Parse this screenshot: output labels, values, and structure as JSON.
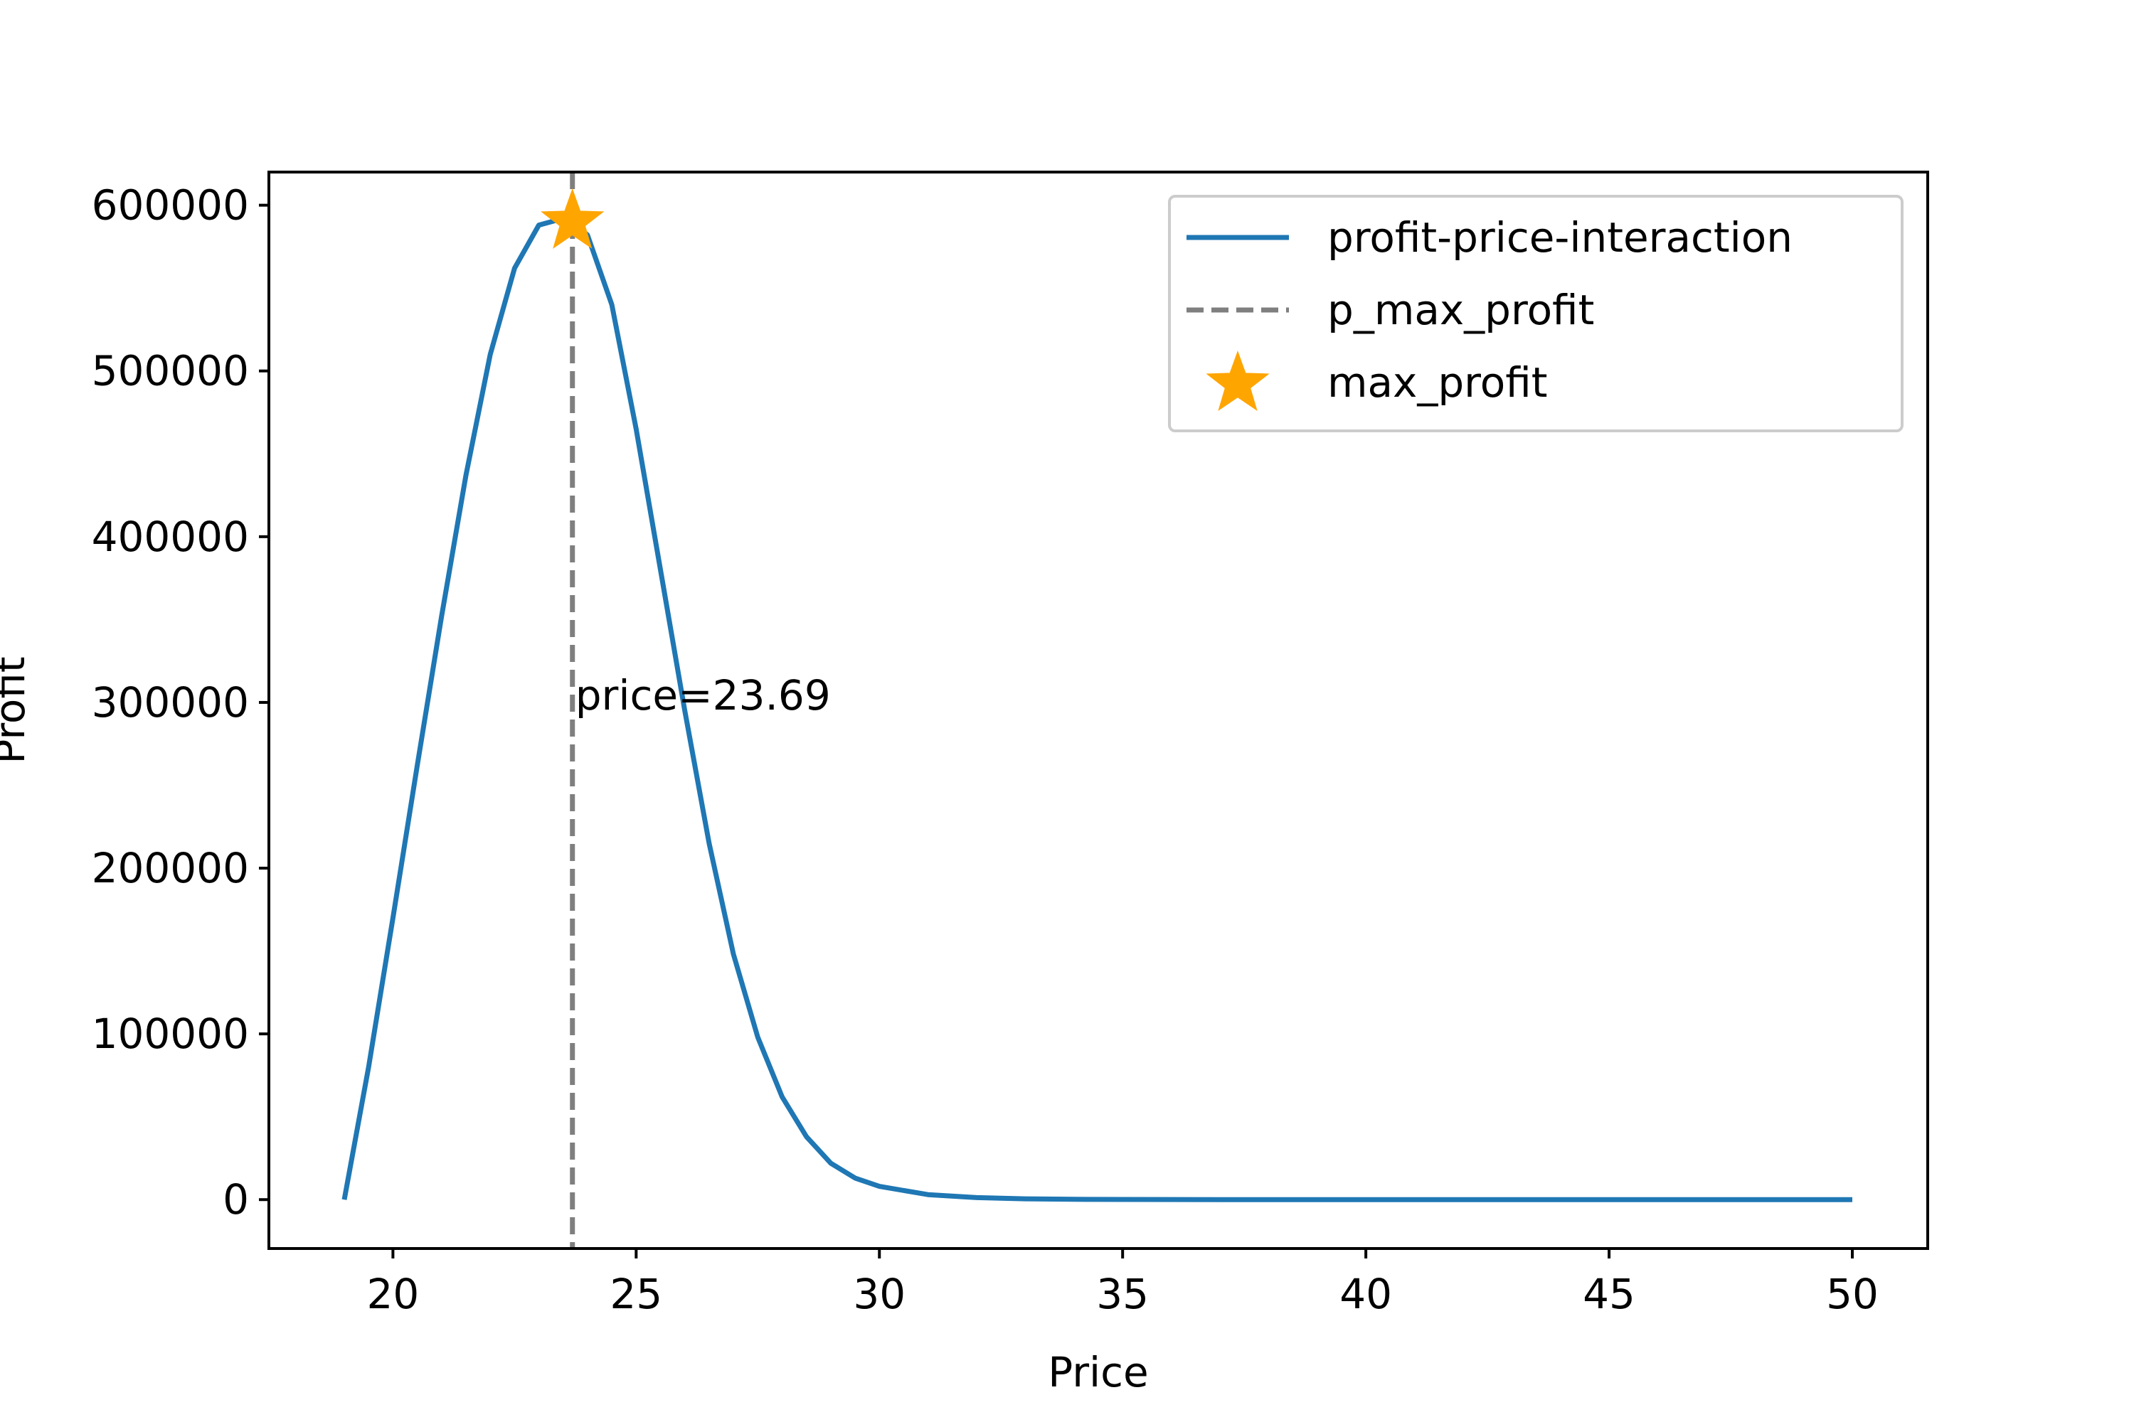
{
  "chart_data": {
    "type": "line",
    "xlabel": "Price",
    "ylabel": "Profit",
    "xlim": [
      17.45,
      51.55
    ],
    "ylim": [
      -29500,
      620000
    ],
    "x_ticks": [
      "20",
      "25",
      "30",
      "35",
      "40",
      "45",
      "50"
    ],
    "y_ticks": [
      "0",
      "100000",
      "200000",
      "300000",
      "400000",
      "500000",
      "600000"
    ],
    "grid": false,
    "legend_position": "top-right",
    "series": [
      {
        "name": "profit-price-interaction",
        "color": "#1f77b4",
        "style": "solid",
        "x": [
          19,
          19.5,
          20,
          20.5,
          21,
          21.5,
          22,
          22.5,
          23,
          23.5,
          23.69,
          24,
          24.5,
          25,
          25.5,
          26,
          26.5,
          27,
          27.5,
          28,
          28.5,
          29,
          29.5,
          30,
          31,
          32,
          33,
          34,
          35,
          37,
          40,
          45,
          50
        ],
        "y": [
          0,
          80000,
          170000,
          262000,
          352000,
          437000,
          510000,
          562000,
          588000,
          592000,
          590000,
          582000,
          540000,
          465000,
          380000,
          295000,
          215000,
          148000,
          98000,
          62000,
          38000,
          22000,
          13000,
          8000,
          3000,
          1200,
          500,
          200,
          80,
          10,
          0,
          0,
          0
        ]
      },
      {
        "name": "p_max_profit",
        "color": "#7f7f7f",
        "style": "dashed",
        "x_value": 23.69
      },
      {
        "name": "max_profit",
        "color": "#ffa500",
        "marker": "star",
        "x": 23.69,
        "y": 590000
      }
    ],
    "annotations": [
      {
        "text": "price=23.69",
        "x": 23.69,
        "y": 300000
      }
    ]
  }
}
